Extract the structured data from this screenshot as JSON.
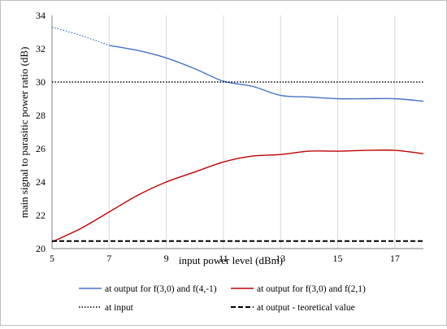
{
  "chart_data": {
    "type": "line",
    "title": "",
    "xlabel": "input power level (dBm)",
    "ylabel": "main signal to parasitic power ratio (dB)",
    "xlim": [
      5,
      18
    ],
    "ylim": [
      20,
      34
    ],
    "xticks": [
      5,
      7,
      9,
      11,
      13,
      15,
      17
    ],
    "yticks": [
      20,
      22,
      24,
      26,
      28,
      30,
      32,
      34
    ],
    "grid": "vertical",
    "legend_position": "bottom",
    "series": [
      {
        "name": "at output for f(3,0) and f(4,-1)",
        "color": "#4472c4",
        "style": "solid",
        "extrapolated_style": "dotted",
        "extrapolated_points": [
          [
            5,
            33.3
          ],
          [
            6,
            32.8
          ],
          [
            7,
            32.2
          ]
        ],
        "points": [
          [
            7,
            32.2
          ],
          [
            8,
            31.9
          ],
          [
            9,
            31.45
          ],
          [
            10,
            30.8
          ],
          [
            11,
            30.05
          ],
          [
            12,
            29.75
          ],
          [
            13,
            29.2
          ],
          [
            14,
            29.1
          ],
          [
            15,
            29.0
          ],
          [
            16,
            29.0
          ],
          [
            17,
            29.0
          ],
          [
            18,
            28.85
          ]
        ]
      },
      {
        "name": "at output for f(3,0) and f(2,1)",
        "color": "#c00000",
        "style": "solid",
        "points": [
          [
            5,
            20.4
          ],
          [
            6,
            21.2
          ],
          [
            7,
            22.2
          ],
          [
            8,
            23.2
          ],
          [
            9,
            24.0
          ],
          [
            10,
            24.6
          ],
          [
            11,
            25.2
          ],
          [
            12,
            25.55
          ],
          [
            13,
            25.65
          ],
          [
            14,
            25.85
          ],
          [
            15,
            25.85
          ],
          [
            16,
            25.9
          ],
          [
            17,
            25.9
          ],
          [
            18,
            25.7
          ]
        ]
      },
      {
        "name": "at input",
        "color": "#000000",
        "style": "dotted",
        "points": [
          [
            5,
            30.0
          ],
          [
            18,
            30.0
          ]
        ]
      },
      {
        "name": "at output - teoretical value",
        "color": "#000000",
        "style": "dashed",
        "points": [
          [
            5,
            20.45
          ],
          [
            18,
            20.45
          ]
        ]
      }
    ]
  }
}
